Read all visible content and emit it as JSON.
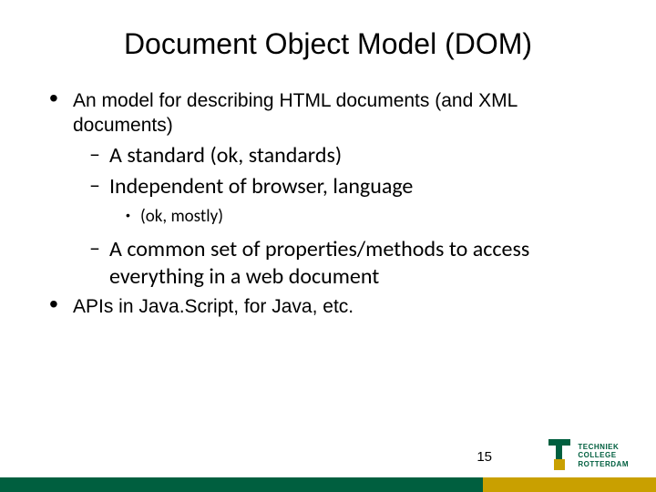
{
  "title": "Document Object Model (DOM)",
  "bullets": {
    "b1": "An model for describing HTML documents (and XML documents)",
    "s1": "A standard (ok, standards)",
    "s2": "Independent of browser, language",
    "ss1": "(ok, mostly)",
    "s3": "A common set of properties/methods to access everything in a web document",
    "b2": "APIs in Java.Script, for Java, etc."
  },
  "page_number": "15",
  "logo": {
    "line1": "TECHNIEK",
    "line2": "COLLEGE",
    "line3": "ROTTERDAM"
  },
  "colors": {
    "footer_green": "#005f3f",
    "footer_yellow": "#c9a000",
    "text": "#000000",
    "background": "#ffffff"
  }
}
